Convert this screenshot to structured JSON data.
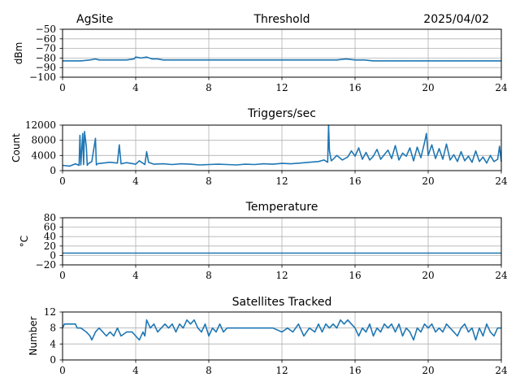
{
  "header": {
    "site": "AgSite",
    "date": "2025/04/02"
  },
  "style": {
    "line_color": "#1f77b4"
  },
  "chart_data": [
    {
      "type": "line",
      "title": "Threshold",
      "xlabel": "",
      "ylabel": "dBm",
      "xlim": [
        0,
        24
      ],
      "ylim": [
        -100,
        -50
      ],
      "xticks": [
        0,
        4,
        8,
        12,
        16,
        20,
        24
      ],
      "xtick_labels": [
        "0",
        "4",
        "8",
        "12",
        "16",
        "20",
        "24"
      ],
      "yticks": [
        -100,
        -90,
        -80,
        -70,
        -60,
        -50
      ],
      "ytick_labels": [
        "−100",
        "−90",
        "−80",
        "−70",
        "−60",
        "−50"
      ],
      "grid": true,
      "series": [
        {
          "x": [
            0,
            0.5,
            1,
            1.5,
            1.8,
            2,
            2.5,
            3,
            3.5,
            3.9,
            4,
            4.3,
            4.6,
            4.9,
            5.2,
            5.5,
            6,
            7,
            8,
            9,
            10,
            11,
            12,
            13,
            14,
            14.5,
            15,
            15.5,
            16,
            16.5,
            17,
            18,
            19,
            20,
            21,
            22,
            23,
            24
          ],
          "y": [
            -83,
            -83,
            -83,
            -82,
            -81,
            -82,
            -82,
            -82,
            -82,
            -81,
            -79,
            -80,
            -79,
            -81,
            -81,
            -82,
            -82,
            -82,
            -82,
            -82,
            -82,
            -82,
            -82,
            -82,
            -82,
            -82,
            -82,
            -81,
            -82,
            -82,
            -83,
            -83,
            -83,
            -83,
            -83,
            -83,
            -83,
            -83
          ]
        }
      ]
    },
    {
      "type": "line",
      "title": "Triggers/sec",
      "xlabel": "",
      "ylabel": "Count",
      "xlim": [
        0,
        24
      ],
      "ylim": [
        0,
        12000
      ],
      "xticks": [
        0,
        4,
        8,
        12,
        16,
        20,
        24
      ],
      "xtick_labels": [
        "0",
        "4",
        "8",
        "12",
        "16",
        "20",
        "24"
      ],
      "yticks": [
        0,
        4000,
        8000,
        12000
      ],
      "ytick_labels": [
        "0",
        "4000",
        "8000",
        "12000"
      ],
      "grid": true,
      "series": [
        {
          "x": [
            0,
            0.4,
            0.7,
            0.9,
            0.95,
            1.0,
            1.1,
            1.15,
            1.2,
            1.3,
            1.35,
            1.4,
            1.6,
            1.8,
            1.85,
            1.9,
            2.2,
            2.6,
            3.0,
            3.1,
            3.2,
            3.5,
            4.0,
            4.2,
            4.5,
            4.6,
            4.7,
            5.0,
            5.5,
            6,
            6.5,
            7,
            7.5,
            8,
            8.5,
            9,
            9.5,
            10,
            10.5,
            11,
            11.5,
            12,
            12.5,
            13,
            13.5,
            14,
            14.3,
            14.5,
            14.55,
            14.6,
            14.7,
            14.8,
            15.0,
            15.3,
            15.6,
            15.8,
            16.0,
            16.2,
            16.4,
            16.6,
            16.8,
            17.0,
            17.2,
            17.4,
            17.6,
            17.8,
            18.0,
            18.2,
            18.4,
            18.6,
            18.8,
            19.0,
            19.2,
            19.4,
            19.6,
            19.8,
            19.9,
            20.0,
            20.2,
            20.4,
            20.6,
            20.8,
            21.0,
            21.2,
            21.4,
            21.6,
            21.8,
            22.0,
            22.2,
            22.4,
            22.6,
            22.8,
            23.0,
            23.2,
            23.4,
            23.6,
            23.8,
            23.9,
            24.0
          ],
          "y": [
            1400,
            1200,
            1800,
            1400,
            9300,
            1500,
            9800,
            1600,
            10300,
            6200,
            1400,
            1800,
            2400,
            8500,
            1500,
            1800,
            2000,
            2200,
            2000,
            6800,
            1800,
            2100,
            1700,
            2600,
            1600,
            5000,
            2200,
            1700,
            1800,
            1600,
            1800,
            1700,
            1500,
            1600,
            1700,
            1600,
            1500,
            1700,
            1600,
            1800,
            1700,
            1900,
            1800,
            2000,
            2200,
            2400,
            2800,
            2200,
            12000,
            5200,
            2600,
            3000,
            4000,
            2800,
            3600,
            5200,
            3800,
            6000,
            3000,
            4800,
            2800,
            3800,
            5600,
            3000,
            4200,
            5400,
            3200,
            6600,
            2800,
            4600,
            3800,
            6000,
            2600,
            6200,
            3400,
            7400,
            9800,
            4000,
            6800,
            3200,
            5800,
            3000,
            7000,
            2800,
            4200,
            2400,
            5000,
            2600,
            3800,
            2200,
            5200,
            2400,
            3600,
            2000,
            4000,
            2400,
            3000,
            6400,
            2400
          ]
        }
      ]
    },
    {
      "type": "line",
      "title": "Temperature",
      "xlabel": "",
      "ylabel": "°C",
      "xlim": [
        0,
        24
      ],
      "ylim": [
        -20,
        80
      ],
      "xticks": [
        0,
        4,
        8,
        12,
        16,
        20,
        24
      ],
      "xtick_labels": [
        "0",
        "4",
        "8",
        "12",
        "16",
        "20",
        "24"
      ],
      "yticks": [
        -20,
        0,
        20,
        40,
        60,
        80
      ],
      "ytick_labels": [
        "−20",
        "0",
        "20",
        "40",
        "60",
        "80"
      ],
      "grid": true,
      "series": [
        {
          "x": [
            0,
            24
          ],
          "y": [
            5,
            5
          ]
        }
      ]
    },
    {
      "type": "line",
      "title": "Satellites Tracked",
      "xlabel": "",
      "ylabel": "Number",
      "xlim": [
        0,
        24
      ],
      "ylim": [
        0,
        12
      ],
      "xticks": [
        0,
        4,
        8,
        12,
        16,
        20,
        24
      ],
      "xtick_labels": [
        "0",
        "4",
        "8",
        "12",
        "16",
        "20",
        "24"
      ],
      "yticks": [
        0,
        4,
        8,
        12
      ],
      "ytick_labels": [
        "0",
        "4",
        "8",
        "12"
      ],
      "grid": true,
      "series": [
        {
          "x": [
            0,
            0.1,
            0.7,
            0.8,
            1.0,
            1.3,
            1.5,
            1.6,
            1.8,
            2.0,
            2.2,
            2.4,
            2.6,
            2.8,
            3.0,
            3.2,
            3.5,
            3.8,
            4.0,
            4.2,
            4.4,
            4.5,
            4.6,
            4.8,
            5.0,
            5.2,
            5.4,
            5.6,
            5.8,
            6.0,
            6.2,
            6.4,
            6.6,
            6.8,
            7.0,
            7.2,
            7.4,
            7.6,
            7.8,
            8.0,
            8.2,
            8.4,
            8.6,
            8.8,
            9.0,
            9.5,
            10,
            10.5,
            11,
            11.5,
            12.0,
            12.3,
            12.6,
            12.9,
            13.2,
            13.5,
            13.8,
            14.0,
            14.2,
            14.4,
            14.6,
            14.8,
            15.0,
            15.2,
            15.4,
            15.6,
            15.8,
            16.0,
            16.2,
            16.4,
            16.6,
            16.8,
            17.0,
            17.2,
            17.4,
            17.6,
            17.8,
            18.0,
            18.2,
            18.4,
            18.6,
            18.8,
            19.0,
            19.2,
            19.4,
            19.6,
            19.8,
            20.0,
            20.2,
            20.4,
            20.6,
            20.8,
            21.0,
            21.2,
            21.4,
            21.6,
            21.8,
            22.0,
            22.2,
            22.4,
            22.6,
            22.8,
            23.0,
            23.2,
            23.4,
            23.6,
            23.8,
            24.0
          ],
          "y": [
            8,
            9,
            9,
            8,
            8,
            7,
            6,
            5,
            7,
            8,
            7,
            6,
            7,
            6,
            8,
            6,
            7,
            7,
            6,
            5,
            7,
            6,
            10,
            8,
            9,
            7,
            8,
            9,
            8,
            9,
            7,
            9,
            8,
            10,
            9,
            10,
            8,
            7,
            9,
            6,
            8,
            7,
            9,
            7,
            8,
            8,
            8,
            8,
            8,
            8,
            7,
            8,
            7,
            9,
            6,
            8,
            7,
            9,
            7,
            9,
            8,
            9,
            8,
            10,
            9,
            10,
            9,
            8,
            6,
            8,
            7,
            9,
            6,
            8,
            7,
            9,
            8,
            9,
            7,
            9,
            6,
            8,
            7,
            5,
            8,
            7,
            9,
            8,
            9,
            7,
            8,
            7,
            9,
            8,
            7,
            6,
            8,
            9,
            7,
            8,
            5,
            8,
            6,
            9,
            7,
            6,
            8,
            8
          ]
        }
      ]
    }
  ]
}
